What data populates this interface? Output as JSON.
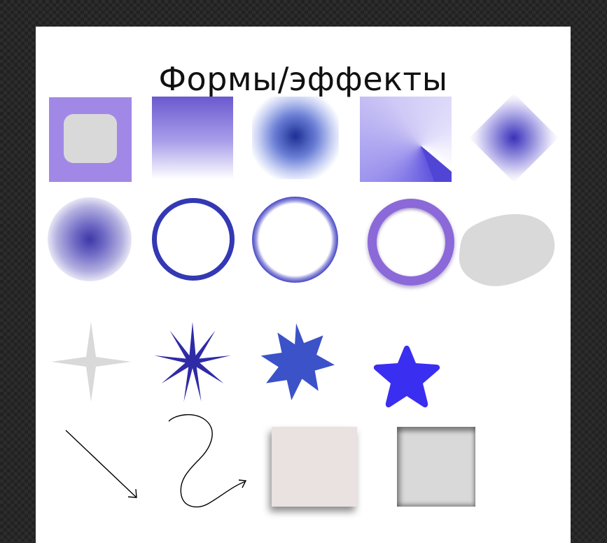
{
  "artboard": {
    "title": "Формы/эффекты",
    "background": "#ffffff"
  },
  "canvas": {
    "background": "#222222"
  },
  "colors": {
    "purple": "#a188e6",
    "indigo": "#3338b4",
    "blue": "#3c58cb",
    "star_blue": "#3a2ef0",
    "gray": "#d9d9d9"
  },
  "shapes": [
    "square-with-rounded-inner",
    "linear-gradient-square",
    "radial-gradient-square",
    "angular-gradient-square",
    "diamond-gradient",
    "blurred-dot",
    "stroke-ring",
    "blurred-ring",
    "ring-with-shadow",
    "gray-blob",
    "four-point-star",
    "thin-star-burst",
    "spiky-star",
    "rounded-five-point-star",
    "straight-arrow",
    "curved-arrow",
    "drop-shadow-square",
    "inner-shadow-square"
  ]
}
